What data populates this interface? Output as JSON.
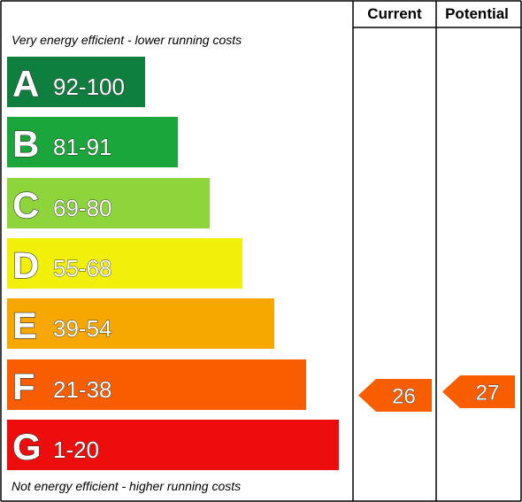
{
  "chart_data": {
    "type": "bar",
    "headers": {
      "current": "Current",
      "potential": "Potential"
    },
    "top_note": "Very energy efficient - lower running costs",
    "bottom_note": "Not energy efficient - higher running costs",
    "bands": [
      {
        "letter": "A",
        "range": "92-100",
        "color": "#0f7f3f"
      },
      {
        "letter": "B",
        "range": "81-91",
        "color": "#1aa63b"
      },
      {
        "letter": "C",
        "range": "69-80",
        "color": "#8ed43b"
      },
      {
        "letter": "D",
        "range": "55-68",
        "color": "#f2f00a"
      },
      {
        "letter": "E",
        "range": "39-54",
        "color": "#f6a800"
      },
      {
        "letter": "F",
        "range": "21-38",
        "color": "#f85d00"
      },
      {
        "letter": "G",
        "range": "1-20",
        "color": "#ee0d0d"
      }
    ],
    "current_rating": {
      "value": 26,
      "band": "F",
      "color": "#f85d00"
    },
    "potential_rating": {
      "value": 27,
      "band": "F",
      "color": "#f85d00"
    }
  }
}
